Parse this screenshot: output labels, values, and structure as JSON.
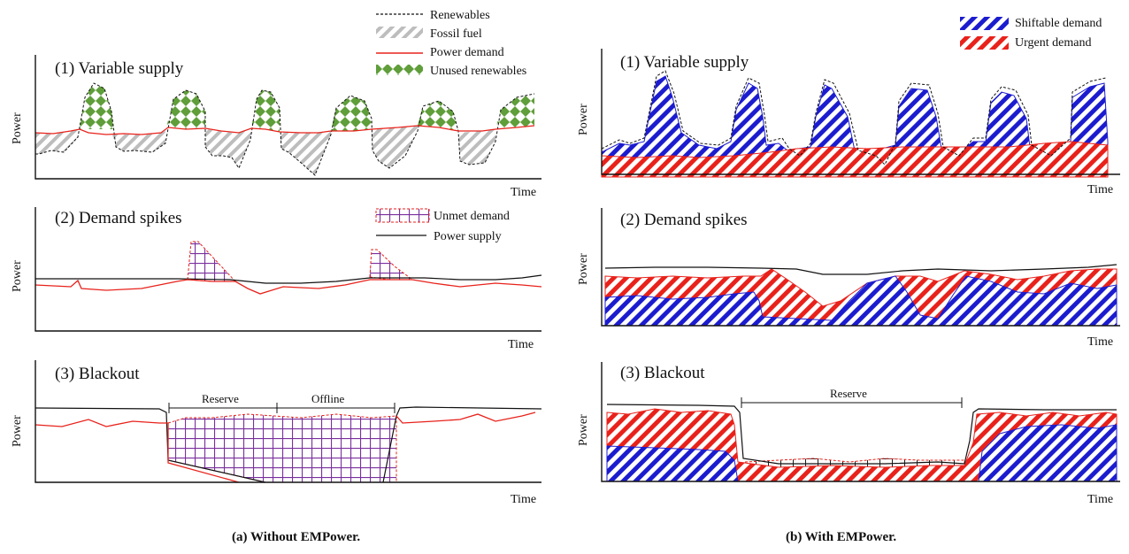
{
  "left": {
    "caption": "(a) Without EMPower.",
    "legend_top": [
      "Renewables",
      "Fossil fuel",
      "Power demand",
      "Unused renewables"
    ],
    "panel1_title": "(1) Variable supply",
    "panel2_title": "(2) Demand spikes",
    "panel2_legend": [
      "Unmet demand",
      "Power supply"
    ],
    "panel3_title": "(3) Blackout",
    "reserve_label": "Reserve",
    "offline_label": "Offline",
    "ylabel": "Power",
    "xlabel": "Time"
  },
  "right": {
    "caption": "(b) With EMPower.",
    "legend_top": [
      "Shiftable demand",
      "Urgent demand"
    ],
    "panel1_title": "(1) Variable supply",
    "panel2_title": "(2) Demand spikes",
    "panel3_title": "(3) Blackout",
    "reserve_label": "Reserve",
    "ylabel": "Power",
    "xlabel": "Time"
  },
  "colors": {
    "demand_red": "#e8221b",
    "shiftable_blue": "#1c1ccf",
    "renewable_green": "#5f9e3a",
    "fossil_gray": "#bdbdbd",
    "unmet_purple": "#7a2f9e"
  }
}
